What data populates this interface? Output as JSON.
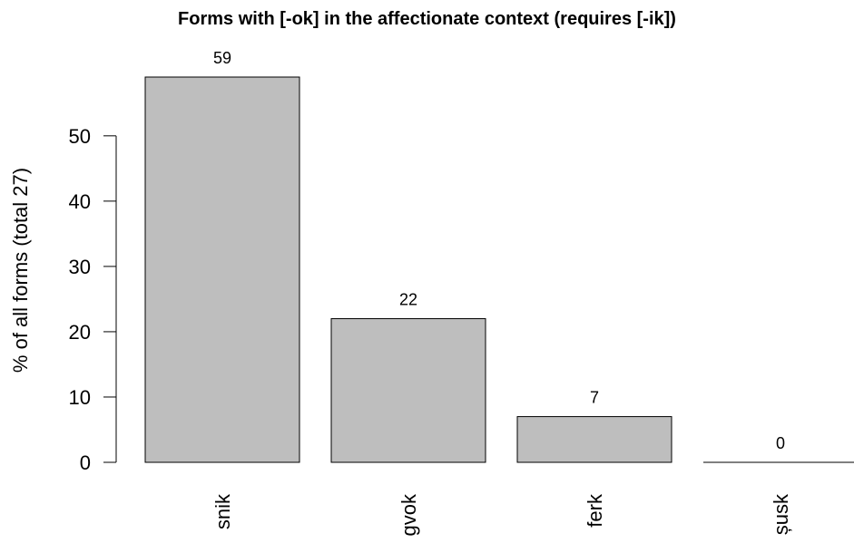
{
  "chart_data": {
    "type": "bar",
    "title": "Forms with [-ok] in the affectionate context (requires [-ik])",
    "ylabel": "% of all forms (total 27)",
    "xlabel": "",
    "categories": [
      "snik",
      "gvok",
      "ferk",
      "șusk"
    ],
    "values": [
      59,
      22,
      7,
      0
    ],
    "value_labels": [
      "59",
      "22",
      "7",
      "0"
    ],
    "ylim": [
      0,
      59
    ],
    "yticks": [
      0,
      10,
      20,
      30,
      40,
      50
    ],
    "grid": false,
    "legend": "none",
    "bar_color": "#bebebe",
    "bar_edge_color": "#000000"
  }
}
